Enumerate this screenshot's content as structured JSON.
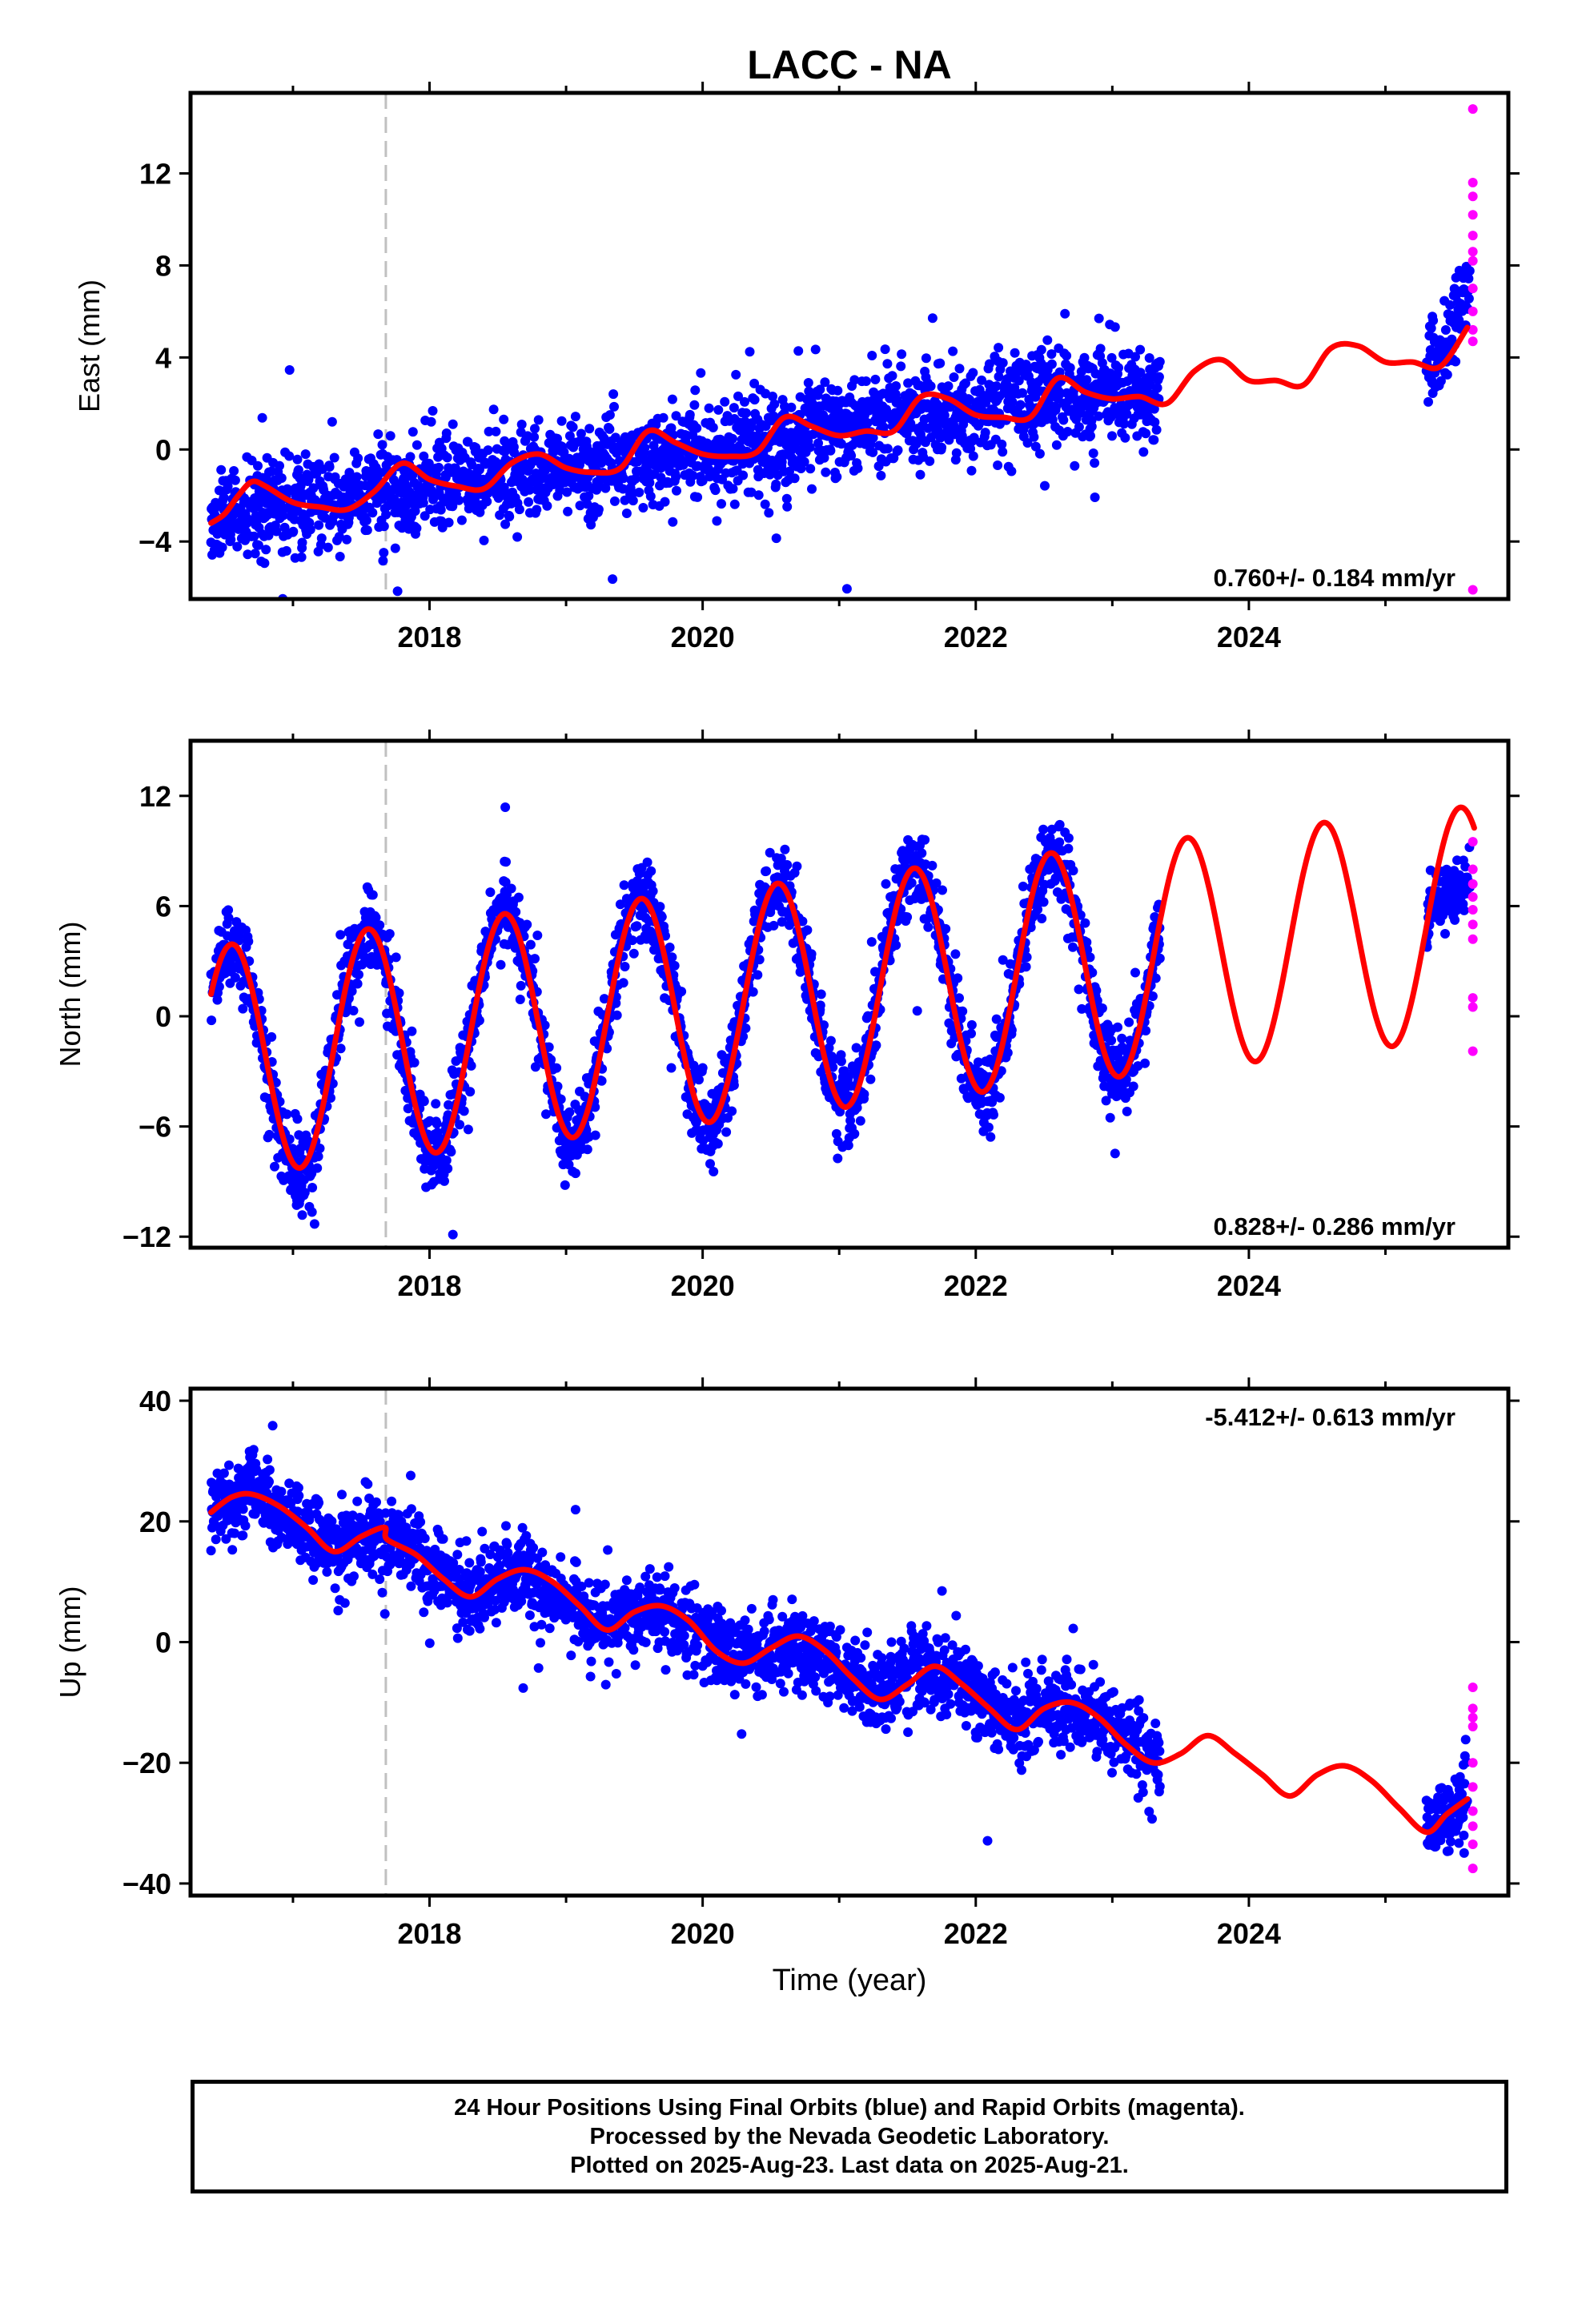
{
  "title": "LACC - NA",
  "colors": {
    "final_orbits": "#0000ff",
    "rapid_orbits": "#ff00ff",
    "model": "#ff0000",
    "equipment_change_line": "#c0c0c0"
  },
  "footer": {
    "line1": "24 Hour Positions Using Final Orbits (blue) and Rapid Orbits (magenta).",
    "line2": "Processed by the Nevada Geodetic Laboratory.",
    "line3": "Plotted on 2025-Aug-23. Last data on 2025-Aug-21."
  },
  "chart_data": [
    {
      "type": "scatter",
      "panel": "east",
      "title": "",
      "xlabel": "",
      "ylabel": "East (mm)",
      "xlim": [
        2016.25,
        2025.9
      ],
      "ylim": [
        -6.5,
        15.5
      ],
      "x_ticks": [
        2018,
        2020,
        2022,
        2024
      ],
      "y_ticks": [
        -4,
        0,
        4,
        8,
        12
      ],
      "rate_text": "0.760+/- 0.184 mm/yr",
      "rate_position": "bottom-right",
      "equipment_change_year": 2017.68,
      "final_orbits": {
        "span": [
          2016.4,
          2023.35
        ],
        "trend": [
          [
            2016.4,
            -3.0
          ],
          [
            2017.0,
            -2.3
          ],
          [
            2017.5,
            -2.0
          ],
          [
            2018.0,
            -1.5
          ],
          [
            2018.5,
            -1.0
          ],
          [
            2019.0,
            -0.9
          ],
          [
            2019.5,
            -0.5
          ],
          [
            2020.0,
            0.0
          ],
          [
            2020.5,
            0.4
          ],
          [
            2021.0,
            0.9
          ],
          [
            2021.5,
            1.5
          ],
          [
            2022.0,
            1.8
          ],
          [
            2022.5,
            2.3
          ],
          [
            2023.35,
            2.5
          ]
        ],
        "scatter_sd": 1.0,
        "late_span": [
          2025.3,
          2025.62
        ],
        "late_trend": [
          [
            2025.3,
            3.5
          ],
          [
            2025.45,
            4.5
          ],
          [
            2025.62,
            7.5
          ]
        ]
      },
      "rapid_orbits": {
        "x": [
          2025.64,
          2025.64,
          2025.64,
          2025.64,
          2025.64,
          2025.64,
          2025.64,
          2025.64,
          2025.64,
          2025.64,
          2025.64,
          2025.64
        ],
        "y": [
          14.8,
          11.6,
          11.0,
          10.2,
          9.3,
          8.6,
          8.2,
          7.0,
          6.0,
          5.2,
          4.7,
          -6.1
        ]
      },
      "model": {
        "x": [
          2016.4,
          2016.5,
          2016.6,
          2016.7,
          2016.8,
          2017.0,
          2017.2,
          2017.4,
          2017.6,
          2017.8,
          2018.0,
          2018.2,
          2018.4,
          2018.6,
          2018.8,
          2019.0,
          2019.2,
          2019.4,
          2019.6,
          2019.8,
          2020.0,
          2020.2,
          2020.4,
          2020.6,
          2020.8,
          2021.0,
          2021.2,
          2021.4,
          2021.6,
          2021.8,
          2022.0,
          2022.2,
          2022.4,
          2022.6,
          2022.8,
          2023.0,
          2023.2,
          2023.4,
          2023.6,
          2023.8,
          2024.0,
          2024.2,
          2024.4,
          2024.6,
          2024.8,
          2025.0,
          2025.2,
          2025.4,
          2025.6
        ],
        "y": [
          -3.2,
          -2.8,
          -2.0,
          -1.4,
          -1.6,
          -2.3,
          -2.5,
          -2.6,
          -1.8,
          -0.6,
          -1.3,
          -1.6,
          -1.7,
          -0.6,
          -0.2,
          -0.8,
          -1.0,
          -0.8,
          0.8,
          0.3,
          -0.2,
          -0.3,
          -0.1,
          1.4,
          1.0,
          0.6,
          0.8,
          0.8,
          2.3,
          2.2,
          1.5,
          1.4,
          1.4,
          3.1,
          2.5,
          2.2,
          2.3,
          2.0,
          3.4,
          3.9,
          3.0,
          3.0,
          2.8,
          4.4,
          4.5,
          3.8,
          3.8,
          3.6,
          5.3
        ]
      }
    },
    {
      "type": "scatter",
      "panel": "north",
      "title": "",
      "xlabel": "",
      "ylabel": "North (mm)",
      "xlim": [
        2016.25,
        2025.9
      ],
      "ylim": [
        -12.6,
        15.0
      ],
      "x_ticks": [
        2018,
        2020,
        2022,
        2024
      ],
      "y_ticks": [
        -12,
        -6,
        0,
        6,
        12
      ],
      "rate_text": "0.828+/- 0.286 mm/yr",
      "rate_position": "bottom-right",
      "equipment_change_year": 2017.68,
      "seasonal_model": {
        "offset": -2.5,
        "rate": 0.828,
        "amplitude": 6.3,
        "peak_phase_year": 2016.55,
        "start": 2016.4,
        "end": 2025.65
      },
      "final_orbits": {
        "span": [
          2016.4,
          2023.35
        ],
        "scatter_sd": 1.1,
        "late_span": [
          2025.3,
          2025.62
        ],
        "late_trend": [
          [
            2025.3,
            5.5
          ],
          [
            2025.45,
            6.5
          ],
          [
            2025.62,
            7.5
          ]
        ]
      },
      "rapid_orbits": {
        "x": [
          2025.64,
          2025.64,
          2025.64,
          2025.64,
          2025.64,
          2025.64,
          2025.64,
          2025.64,
          2025.64,
          2025.64
        ],
        "y": [
          9.5,
          8.0,
          7.2,
          6.5,
          5.8,
          5.0,
          4.2,
          1.0,
          0.5,
          -1.9
        ]
      }
    },
    {
      "type": "scatter",
      "panel": "up",
      "title": "",
      "xlabel": "Time (year)",
      "ylabel": "Up (mm)",
      "xlim": [
        2016.25,
        2025.9
      ],
      "ylim": [
        -42,
        42
      ],
      "x_ticks": [
        2018,
        2020,
        2022,
        2024
      ],
      "y_ticks": [
        -40,
        -20,
        0,
        20,
        40
      ],
      "rate_text": "-5.412+/- 0.613 mm/yr",
      "rate_position": "top-right",
      "equipment_change_year": 2017.68,
      "final_orbits": {
        "span": [
          2016.4,
          2023.35
        ],
        "trend": [
          [
            2016.4,
            22
          ],
          [
            2016.7,
            25
          ],
          [
            2017.3,
            16
          ],
          [
            2017.6,
            19
          ],
          [
            2018.0,
            13
          ],
          [
            2018.3,
            8
          ],
          [
            2018.6,
            12
          ],
          [
            2019.0,
            6
          ],
          [
            2019.3,
            2
          ],
          [
            2019.6,
            6
          ],
          [
            2020.0,
            1
          ],
          [
            2020.3,
            -3
          ],
          [
            2020.6,
            0
          ],
          [
            2021.0,
            -4
          ],
          [
            2021.3,
            -9
          ],
          [
            2021.6,
            -4
          ],
          [
            2022.0,
            -9
          ],
          [
            2022.3,
            -14
          ],
          [
            2022.6,
            -10
          ],
          [
            2023.0,
            -13
          ],
          [
            2023.35,
            -21
          ]
        ],
        "scatter_sd": 3.2,
        "late_span": [
          2025.3,
          2025.6
        ],
        "late_trend": [
          [
            2025.3,
            -31
          ],
          [
            2025.6,
            -27
          ]
        ]
      },
      "rapid_orbits": {
        "x": [
          2025.64,
          2025.64,
          2025.64,
          2025.64,
          2025.64,
          2025.64,
          2025.64,
          2025.64,
          2025.64,
          2025.64
        ],
        "y": [
          -7.5,
          -11.0,
          -12.5,
          -14.0,
          -20.0,
          -24.0,
          -28.0,
          -30.5,
          -33.5,
          -37.5
        ]
      },
      "model": {
        "x": [
          2016.4,
          2016.55,
          2016.7,
          2016.9,
          2017.1,
          2017.3,
          2017.5,
          2017.67,
          2017.69,
          2017.9,
          2018.1,
          2018.3,
          2018.5,
          2018.7,
          2018.9,
          2019.1,
          2019.3,
          2019.5,
          2019.7,
          2019.9,
          2020.1,
          2020.3,
          2020.5,
          2020.7,
          2020.9,
          2021.1,
          2021.3,
          2021.5,
          2021.7,
          2021.9,
          2022.1,
          2022.3,
          2022.5,
          2022.7,
          2022.9,
          2023.1,
          2023.3,
          2023.5,
          2023.7,
          2023.9,
          2024.1,
          2024.3,
          2024.5,
          2024.7,
          2024.9,
          2025.1,
          2025.3,
          2025.45,
          2025.6
        ],
        "y": [
          21.5,
          24.0,
          24.5,
          22.5,
          19.0,
          15.0,
          17.5,
          19.0,
          17.0,
          14.5,
          10.5,
          7.5,
          10.5,
          12.0,
          10.0,
          6.0,
          2.0,
          5.0,
          6.0,
          3.5,
          -1.5,
          -3.5,
          -1.0,
          1.0,
          -1.5,
          -6.0,
          -9.5,
          -7.0,
          -4.0,
          -7.0,
          -11.0,
          -14.5,
          -11.0,
          -10.0,
          -12.5,
          -17.0,
          -20.0,
          -18.5,
          -15.5,
          -18.5,
          -22.0,
          -25.5,
          -22.0,
          -20.5,
          -23.0,
          -27.5,
          -31.5,
          -28.5,
          -26.0
        ]
      }
    }
  ]
}
